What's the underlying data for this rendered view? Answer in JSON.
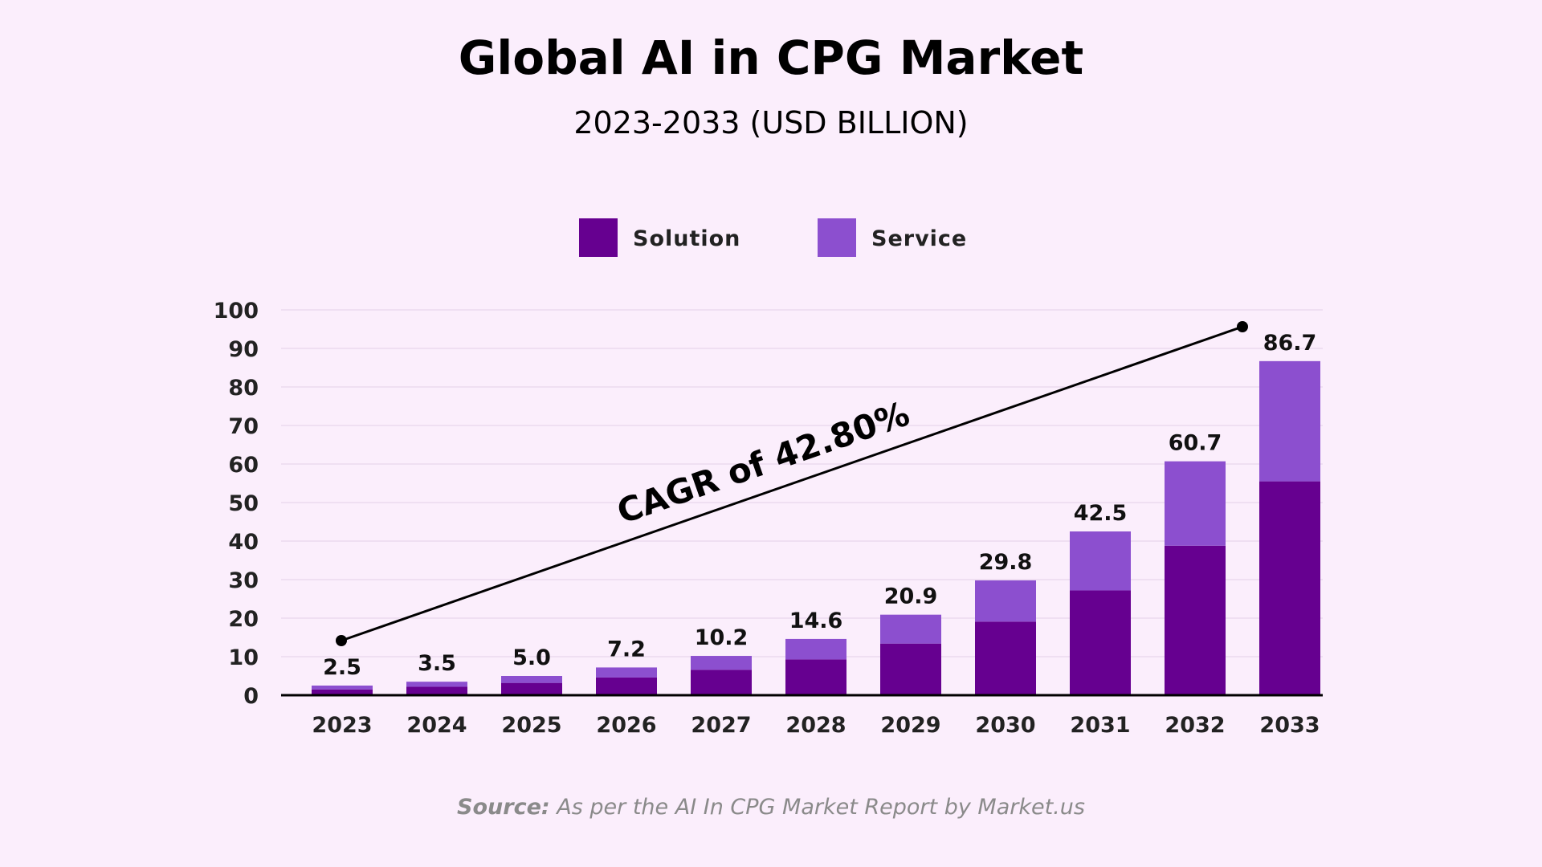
{
  "chart_data": {
    "type": "bar",
    "stacked": true,
    "title": "Global AI in CPG Market",
    "subtitle": "2023-2033 (USD BILLION)",
    "categories": [
      "2023",
      "2024",
      "2025",
      "2026",
      "2027",
      "2028",
      "2029",
      "2030",
      "2031",
      "2032",
      "2033"
    ],
    "series": [
      {
        "name": "Solution",
        "color": "#660090",
        "values": [
          1.5,
          2.2,
          3.2,
          4.6,
          6.6,
          9.3,
          13.4,
          19.1,
          27.2,
          38.8,
          55.5
        ]
      },
      {
        "name": "Service",
        "color": "#8c4fcf",
        "values": [
          1.0,
          1.3,
          1.8,
          2.6,
          3.6,
          5.3,
          7.5,
          10.7,
          15.3,
          21.9,
          31.2
        ]
      }
    ],
    "totals": [
      "2.5",
      "3.5",
      "5.0",
      "7.2",
      "10.2",
      "14.6",
      "20.9",
      "29.8",
      "42.5",
      "60.7",
      "86.7"
    ],
    "yticks": [
      "0",
      "10",
      "20",
      "30",
      "40",
      "50",
      "60",
      "70",
      "80",
      "90",
      "100"
    ],
    "ylim": [
      0,
      100
    ],
    "grid": true,
    "legend_position": "top-center",
    "annotation": "CAGR of 42.80%",
    "source_label": "Source:",
    "source_text": " As per the AI In CPG Market Report by Market.us"
  }
}
